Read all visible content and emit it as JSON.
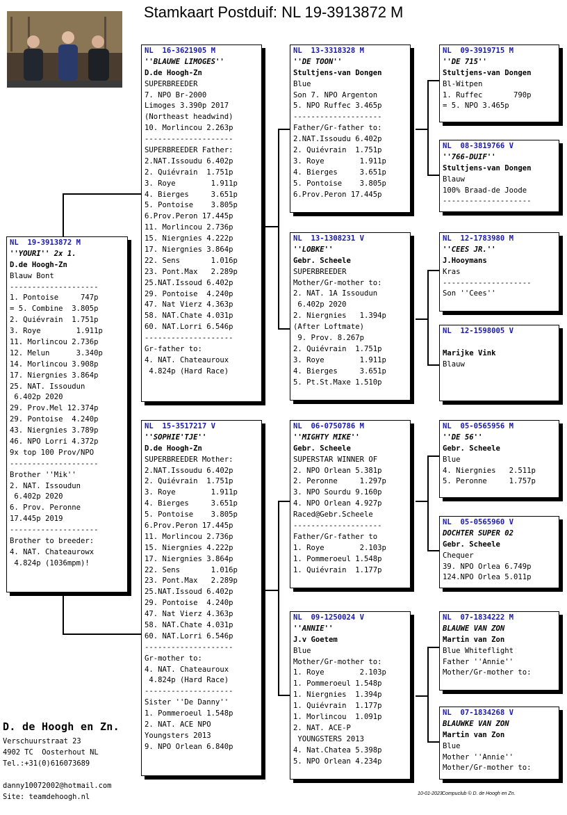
{
  "title": "Stamkaart Postduif: NL  19-3913872 M",
  "boxes": {
    "subject": [
      "NL  19-3913872 M",
      "''YOURI'' 2x 1.",
      "D.de Hoogh-Zn",
      "Blauw Bont",
      "--------------------",
      "1. Pontoise     747p",
      "= 5. Combine  3.805p",
      "2. Quiévrain  1.751p",
      "3. Roye        1.911p",
      "11. Morlincou 2.736p",
      "12. Melun      3.340p",
      "14. Morlincou 3.908p",
      "17. Niergnies 3.864p",
      "25. NAT. Issoudun",
      " 6.402p 2020",
      "29. Prov.Mel 12.374p",
      "29. Pontoise  4.240p",
      "43. Niergnies 3.789p",
      "46. NPO Lorri 4.372p",
      "9x top 100 Prov/NPO",
      "--------------------",
      "Brother ''Mik''",
      "2. NAT. Issoudun",
      " 6.402p 2020",
      "6. Prov. Peronne",
      "17.445p 2019",
      "--------------------",
      "Brother to breeder:",
      "4. NAT. Chateaurowx",
      " 4.824p (1036mpm)!"
    ],
    "father": [
      "NL  16-3621905 M",
      "''BLAUWE LIMOGES''",
      "D.de Hoogh-Zn",
      "SUPERBREEDER",
      "7. NPO Br-2000",
      "Limoges 3.390p 2017",
      "(Northeast headwind)",
      "10. Morlincou 2.263p",
      "--------------------",
      "SUPERBREEDER Father:",
      "2.NAT.Issoudu 6.402p",
      "2. Quiévrain  1.751p",
      "3. Roye        1.911p",
      "4. Bierges     3.651p",
      "5. Pontoise    3.805p",
      "6.Prov.Peron 17.445p",
      "11. Morlincou 2.736p",
      "15. Niergnies 4.222p",
      "17. Niergnies 3.864p",
      "22. Sens       1.016p",
      "23. Pont.Max   2.289p",
      "25.NAT.Issoud 6.402p",
      "29. Pontoise  4.240p",
      "47. Nat Vierz 4.363p",
      "58. NAT.Chate 4.031p",
      "60. NAT.Lorri 6.546p",
      "--------------------",
      "Gr-father to:",
      "4. NAT. Chateauroux",
      " 4.824p (Hard Race)"
    ],
    "mother": [
      "NL  15-3517217 V",
      "''SOPHIE'TJE''",
      "D.de Hoogh-Zn",
      "SUPERBREEDER Mother:",
      "2.NAT.Issoudu 6.402p",
      "2. Quiévrain  1.751p",
      "3. Roye        1.911p",
      "4. Bierges     3.651p",
      "5. Pontoise    3.805p",
      "6.Prov.Peron 17.445p",
      "11. Morlincou 2.736p",
      "15. Niergnies 4.222p",
      "17. Niergnies 3.864p",
      "22. Sens       1.016p",
      "23. Pont.Max   2.289p",
      "25.NAT.Issoud 6.402p",
      "29. Pontoise  4.240p",
      "47. Nat Vierz 4.363p",
      "58. NAT.Chate 4.031p",
      "60. NAT.Lorri 6.546p",
      "--------------------",
      "Gr-mother to:",
      "4. NAT. Chateauroux",
      " 4.824p (Hard Race)",
      "--------------------",
      "Sister ''De Danny''",
      "1. Pommeroeul 1.548p",
      "2. NAT. ACE NPO",
      "Youngsters 2013",
      "9. NPO Orlean 6.840p"
    ],
    "ff": [
      "NL  13-3318328 M",
      "''DE TOON''",
      "Stultjens-van Dongen",
      "Blue",
      "Son 7. NPO Argenton",
      "5. NPO Ruffec 3.465p",
      "--------------------",
      "Father/Gr-father to:",
      "2.NAT.Issoudu 6.402p",
      "2. Quiévrain  1.751p",
      "3. Roye        1.911p",
      "4. Bierges     3.651p",
      "5. Pontoise    3.805p",
      "6.Prov.Peron 17.445p"
    ],
    "fm": [
      "NL  13-1308231 V",
      "''LOBKE''",
      "Gebr. Scheele",
      "SUPERBREEDER",
      "Mother/Gr-mother to:",
      "2. NAT. 1A Issoudun",
      " 6.402p 2020",
      "2. Niergnies   1.394p",
      "(After Loftmate)",
      " 9. Prov. 8.267p",
      "2. Quiévrain  1.751p",
      "3. Roye        1.911p",
      "4. Bierges     3.651p",
      "5. Pt.St.Maxe 1.510p"
    ],
    "mf": [
      "NL  06-0750786 M",
      "''MIGHTY MIKE''",
      "Gebr. Scheele",
      "SUPERSTAR WINNER OF",
      "2. NPO Orlean 5.381p",
      "2. Peronne     1.297p",
      "3. NPO Sourdu 9.160p",
      "4. NPO Orlean 4.927p",
      "Raced@Gebr.Scheele",
      "--------------------",
      "Father/Gr-father to",
      "1. Roye        2.103p",
      "1. Pommeroeul 1.548p",
      "1. Quiévrain  1.177p"
    ],
    "mm": [
      "NL  09-1250024 V",
      "''ANNIE''",
      "J.v Goetem",
      "Blue",
      "Mother/Gr-mother to:",
      "1. Roye        2.103p",
      "1. Pommeroeul 1.548p",
      "1. Niergnies  1.394p",
      "1. Quiévrain  1.177p",
      "1. Morlincou  1.091p",
      "2. NAT. ACE-P",
      " YOUNGSTERS 2013",
      "4. Nat.Chatea 5.398p",
      "5. NPO Orlean 4.234p"
    ],
    "fff": [
      "NL  09-3919715 M",
      "''DE 715''",
      "Stultjens-van Dongen",
      "Bl-Witpen",
      "1. Ruffec       790p",
      "= 5. NPO 3.465p"
    ],
    "ffm": [
      "NL  08-3819766 V",
      "''766-DUIF''",
      "Stultjens-van Dongen",
      "Blauw",
      "100% Braad-de Joode",
      "--------------------"
    ],
    "fmf": [
      "NL  12-1783980 M",
      "''CEES JR.''",
      "J.Hooymans",
      "Kras",
      "--------------------",
      "Son ''Cees''"
    ],
    "fmm": [
      "NL  12-1598005 V",
      "",
      "Marijke Vink",
      "Blauw"
    ],
    "mff": [
      "NL  05-0565956 M",
      "''DE 56''",
      "Gebr. Scheele",
      "Blue",
      "4. Niergnies   2.511p",
      "5. Peronne     1.757p"
    ],
    "mfm": [
      "NL  05-0565960 V",
      "DOCHTER SUPER 02",
      "Gebr. Scheele",
      "Chequer",
      "39. NPO Orlea 6.749p",
      "124.NPO Orlea 5.011p"
    ],
    "mmf": [
      "NL  07-1834222 M",
      "BLAUWE VAN ZON",
      "Martin van Zon",
      "Blue Whiteflight",
      "Father ''Annie''",
      "Mother/Gr-mother to:"
    ],
    "mmm": [
      "NL  07-1834268 V",
      "BLAUWKE VAN ZON",
      "Martin van Zon",
      "Blue",
      "Mother ''Annie''",
      "Mother/Gr-mother to:"
    ]
  },
  "breeder": {
    "name": "D. de Hoogh en Zn.",
    "address1": "Verschuurstraat 23",
    "address2": "4902 TC  Oosterhout NL",
    "phone": "Tel.:+31(0)616073689",
    "email": "danny10072002@hotmail.com",
    "site": "Site: teamdehoogh.nl"
  },
  "footer": {
    "date": "10-01-2023",
    "credit": "Compuclub © D. de Hoogh en Zn."
  }
}
